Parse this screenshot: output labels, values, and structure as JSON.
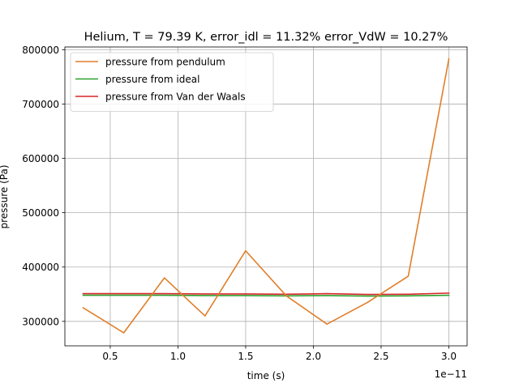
{
  "chart_data": {
    "type": "line",
    "title": "Helium, T = 79.39 K, error_idl = 11.32% error_VdW = 10.27%",
    "xlabel": "time (s)",
    "ylabel": "pressure (Pa)",
    "x_offset_label": "1e−11",
    "xlim": [
      0.165,
      3.135
    ],
    "ylim": [
      255000,
      805000
    ],
    "x_ticks": [
      0.5,
      1.0,
      1.5,
      2.0,
      2.5,
      3.0
    ],
    "x_tick_labels": [
      "0.5",
      "1.0",
      "1.5",
      "2.0",
      "2.5",
      "3.0"
    ],
    "y_ticks": [
      300000,
      400000,
      500000,
      600000,
      700000,
      800000
    ],
    "y_tick_labels": [
      "300000",
      "400000",
      "500000",
      "600000",
      "700000",
      "800000"
    ],
    "grid": true,
    "legend_position": "upper-left",
    "x": [
      0.3,
      0.6,
      0.9,
      1.2,
      1.5,
      1.8,
      2.1,
      2.4,
      2.7,
      3.0
    ],
    "series": [
      {
        "name": "pressure from pendulum",
        "color": "#e07f2a",
        "values": [
          325000,
          279000,
          380000,
          310000,
          430000,
          347000,
          295000,
          335000,
          383000,
          783000
        ]
      },
      {
        "name": "pressure from ideal",
        "color": "#2ca02c",
        "values": [
          348000,
          348000,
          348000,
          347500,
          347500,
          347000,
          347500,
          346500,
          347000,
          348000
        ]
      },
      {
        "name": "pressure from Van der Waals",
        "color": "#d62728",
        "values": [
          351000,
          351000,
          351000,
          350500,
          350500,
          350000,
          351000,
          349500,
          350000,
          352000
        ]
      }
    ]
  }
}
